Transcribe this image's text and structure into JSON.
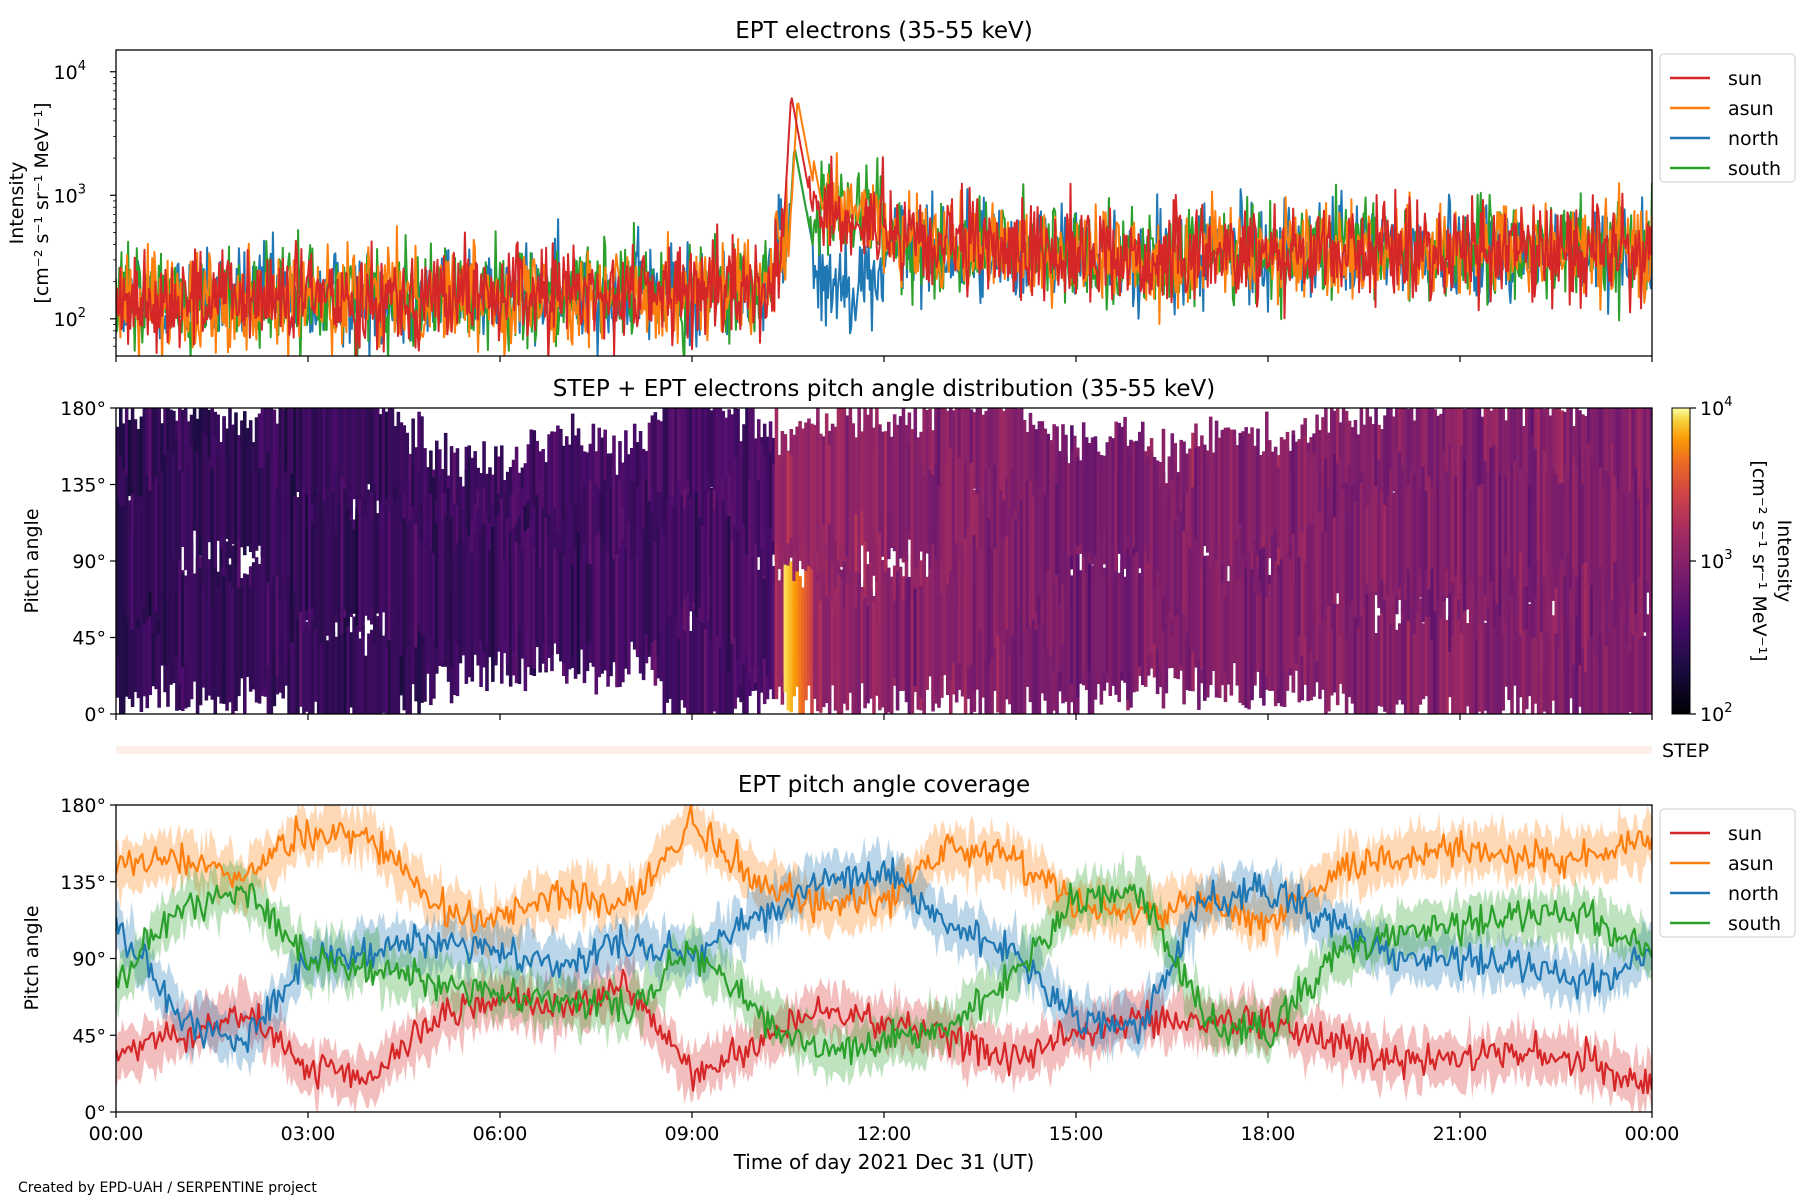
{
  "footer": "Created by EPD-UAH / SERPENTINE project",
  "colors": {
    "sun": "#d62728",
    "asun": "#ff7f0e",
    "north": "#1f77b4",
    "south": "#2ca02c"
  },
  "chart_data": [
    {
      "type": "line",
      "title": "EPT electrons (35-55 keV)",
      "ylabel": [
        "Intensity",
        "[cm⁻² s⁻¹ sr⁻¹ MeV⁻¹]"
      ],
      "yscale": "log",
      "ylim": [
        50,
        15000
      ],
      "yticks": [
        {
          "value": 100,
          "base": "10",
          "exp": "2"
        },
        {
          "value": 1000,
          "base": "10",
          "exp": "3"
        },
        {
          "value": 10000,
          "base": "10",
          "exp": "4"
        }
      ],
      "xlim_hours": [
        0,
        24
      ],
      "legend": {
        "placement": "outside-right-top",
        "entries": [
          "sun",
          "asun",
          "north",
          "south"
        ]
      },
      "events": [
        {
          "series": "sun",
          "peak_hour": 10.55,
          "peak_value": 6500
        },
        {
          "series": "asun",
          "peak_hour": 10.65,
          "peak_value": 6000
        }
      ],
      "background_levels": {
        "00:00-10:30": 150,
        "11:00-16:00": 400,
        "16:00-24:00": 350
      }
    },
    {
      "type": "heatmap",
      "title": "STEP + EPT electrons pitch angle distribution (35-55 keV)",
      "ylabel": "Pitch angle",
      "yticks": [
        "0°",
        "45°",
        "90°",
        "135°",
        "180°"
      ],
      "ylim": [
        0,
        180
      ],
      "colorscale": "inferno",
      "colorbar": {
        "label": "Intensity",
        "units": "[cm⁻² s⁻¹ sr⁻¹ MeV⁻¹]",
        "ticks": [
          {
            "base": "10",
            "exp": "2"
          },
          {
            "base": "10",
            "exp": "3"
          },
          {
            "base": "10",
            "exp": "4"
          }
        ],
        "log_range": [
          100,
          10000
        ]
      },
      "hotspot": {
        "hour": 10.6,
        "pitch_angle": [
          20,
          70
        ],
        "value": 6000
      }
    },
    {
      "type": "bar",
      "label": "STEP",
      "note": "thin strip, near-empty coverage"
    },
    {
      "type": "line",
      "title": "EPT pitch angle coverage",
      "ylabel": "Pitch angle",
      "xlabel": "Time of day 2021 Dec 31 (UT)",
      "xticks": [
        "00:00",
        "03:00",
        "06:00",
        "09:00",
        "12:00",
        "15:00",
        "18:00",
        "21:00",
        "00:00"
      ],
      "yticks": [
        "0°",
        "45°",
        "90°",
        "135°",
        "180°"
      ],
      "ylim": [
        0,
        180
      ],
      "legend": {
        "placement": "outside-right-top",
        "entries": [
          "sun",
          "asun",
          "north",
          "south"
        ]
      },
      "series": [
        {
          "name": "sun",
          "hours": [
            0,
            1,
            2,
            3,
            4,
            5,
            6,
            7,
            8,
            9,
            10,
            11,
            12,
            13,
            14,
            15,
            16,
            17,
            18,
            19,
            20,
            21,
            22,
            23,
            24
          ],
          "pitch_angle": [
            35,
            45,
            60,
            25,
            20,
            55,
            65,
            60,
            75,
            20,
            40,
            60,
            55,
            45,
            30,
            45,
            55,
            50,
            55,
            40,
            30,
            30,
            35,
            30,
            15
          ]
        },
        {
          "name": "asun",
          "hours": [
            0,
            1,
            2,
            3,
            4,
            5,
            6,
            7,
            8,
            9,
            10,
            11,
            12,
            13,
            14,
            15,
            16,
            17,
            18,
            19,
            20,
            21,
            22,
            23,
            24
          ],
          "pitch_angle": [
            145,
            150,
            135,
            165,
            160,
            120,
            110,
            130,
            120,
            170,
            135,
            120,
            125,
            155,
            150,
            120,
            115,
            125,
            110,
            140,
            150,
            155,
            150,
            150,
            160
          ]
        },
        {
          "name": "north",
          "hours": [
            0,
            1,
            2,
            3,
            4,
            5,
            6,
            7,
            8,
            9,
            10,
            11,
            12,
            13,
            14,
            15,
            16,
            17,
            18,
            19,
            20,
            21,
            22,
            23,
            24
          ],
          "pitch_angle": [
            110,
            55,
            40,
            90,
            95,
            100,
            95,
            85,
            100,
            90,
            115,
            135,
            140,
            110,
            95,
            55,
            50,
            125,
            130,
            110,
            90,
            90,
            85,
            75,
            95
          ]
        },
        {
          "name": "south",
          "hours": [
            0,
            1,
            2,
            3,
            4,
            5,
            6,
            7,
            8,
            9,
            10,
            11,
            12,
            13,
            14,
            15,
            16,
            17,
            18,
            19,
            20,
            21,
            22,
            23,
            24
          ],
          "pitch_angle": [
            75,
            120,
            130,
            90,
            85,
            75,
            70,
            65,
            60,
            95,
            60,
            35,
            40,
            50,
            80,
            125,
            130,
            55,
            45,
            90,
            105,
            110,
            115,
            115,
            95
          ]
        }
      ]
    }
  ]
}
